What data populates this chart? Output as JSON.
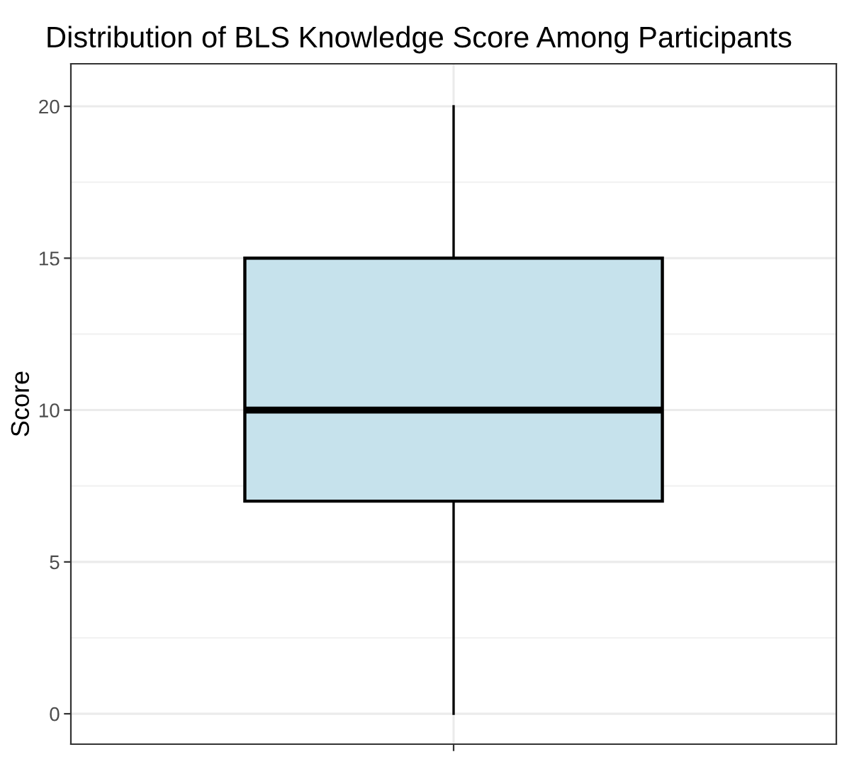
{
  "chart_data": {
    "type": "box",
    "title": "Distribution of BLS Knowledge Score Among Participants",
    "ylabel": "Score",
    "categories": [
      null
    ],
    "boxes": [
      {
        "low": 0,
        "q1": 7,
        "median": 10,
        "q3": 15,
        "high": 20
      }
    ],
    "color": "#c6e2ec",
    "ylim": [
      -1,
      21.4
    ],
    "yticks": [
      0,
      5,
      10,
      15,
      20
    ],
    "grid": true
  }
}
